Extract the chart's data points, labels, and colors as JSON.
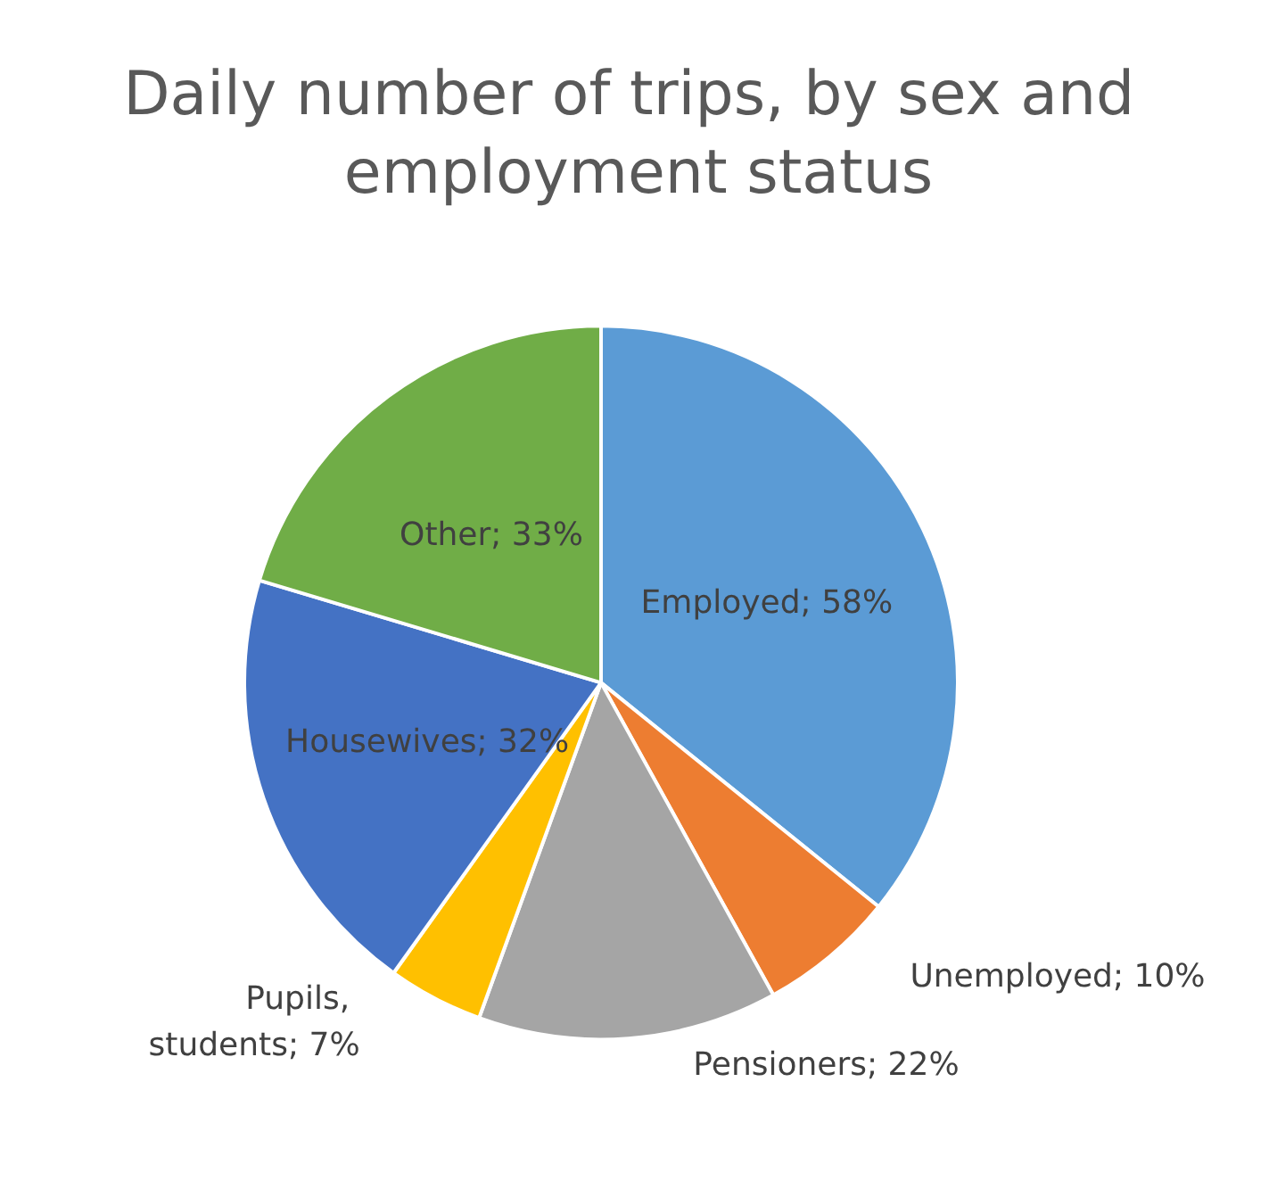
{
  "chart_data": {
    "type": "pie",
    "title": "Daily number of trips, by sex and employment status",
    "categories": [
      "Employed",
      "Unemployed",
      "Pensioners",
      "Pupils, students",
      "Housewives",
      "Other"
    ],
    "values": [
      58,
      10,
      22,
      7,
      32,
      33
    ],
    "value_labels": [
      "58%",
      "10%",
      "22%",
      "7%",
      "32%",
      "33%"
    ],
    "colors": [
      "#5b9bd5",
      "#ed7d31",
      "#a5a5a5",
      "#ffc000",
      "#4472c4",
      "#70ad47"
    ],
    "legend": false
  }
}
